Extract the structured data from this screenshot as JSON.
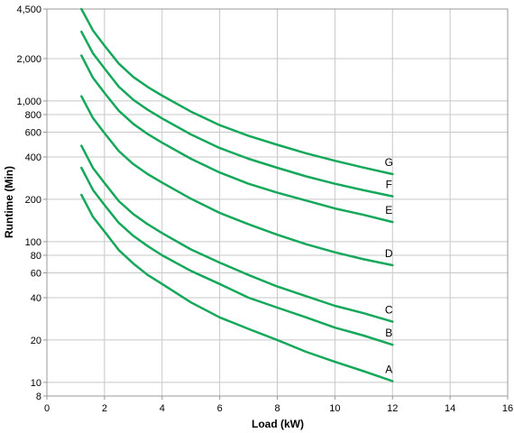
{
  "chart_data": {
    "type": "line",
    "title": "",
    "xlabel": "Load (kW)",
    "ylabel": "Runtime (Min)",
    "xlim": [
      0,
      16
    ],
    "ylim": [
      8,
      4500
    ],
    "yscale": "log",
    "grid": true,
    "legend": "labels at line ends",
    "colors": {
      "line": "#16a85a",
      "grid": "#c8c8c8",
      "frame": "#999999"
    },
    "x_ticks": [
      0,
      2,
      4,
      6,
      8,
      10,
      12,
      14,
      16
    ],
    "x_tick_labels": [
      "0",
      "2",
      "4",
      "6",
      "8",
      "10",
      "12",
      "14",
      "16"
    ],
    "y_ticks": [
      8,
      10,
      20,
      40,
      60,
      80,
      100,
      200,
      400,
      600,
      800,
      1000,
      2000,
      4500
    ],
    "y_tick_labels": [
      "8",
      "10",
      "20",
      "40",
      "60",
      "80",
      "100",
      "200",
      "400",
      "600",
      "800",
      "1,000",
      "2,000",
      "4,500"
    ],
    "x": [
      1.2,
      1.6,
      2,
      2.5,
      3,
      3.5,
      4,
      5,
      6,
      7,
      8,
      9,
      10,
      11,
      12
    ],
    "series": [
      {
        "name": "A",
        "values": [
          215,
          150,
          118,
          87,
          70,
          58,
          50,
          37,
          29,
          24,
          20,
          16.5,
          14,
          12,
          10.2
        ]
      },
      {
        "name": "B",
        "values": [
          335,
          233,
          182,
          136,
          110,
          93,
          80,
          62,
          50,
          40,
          34,
          29,
          24.5,
          21.5,
          18.5
        ]
      },
      {
        "name": "C",
        "values": [
          480,
          334,
          261,
          194,
          157,
          133,
          115,
          88,
          71,
          58,
          48,
          41,
          35,
          31,
          27
        ]
      },
      {
        "name": "D",
        "values": [
          1080,
          755,
          590,
          440,
          356,
          302,
          263,
          202,
          160,
          133,
          112,
          96,
          84,
          75,
          68
        ]
      },
      {
        "name": "E",
        "values": [
          2100,
          1460,
          1140,
          851,
          687,
          582,
          505,
          388,
          310,
          258,
          223,
          196,
          172,
          155,
          138
        ]
      },
      {
        "name": "F",
        "values": [
          3100,
          2180,
          1700,
          1260,
          1020,
          865,
          751,
          578,
          463,
          388,
          335,
          291,
          258,
          232,
          210
        ]
      },
      {
        "name": "G",
        "values": [
          4500,
          3170,
          2470,
          1840,
          1480,
          1257,
          1091,
          840,
          673,
          565,
          488,
          425,
          376,
          336,
          302
        ]
      }
    ]
  }
}
